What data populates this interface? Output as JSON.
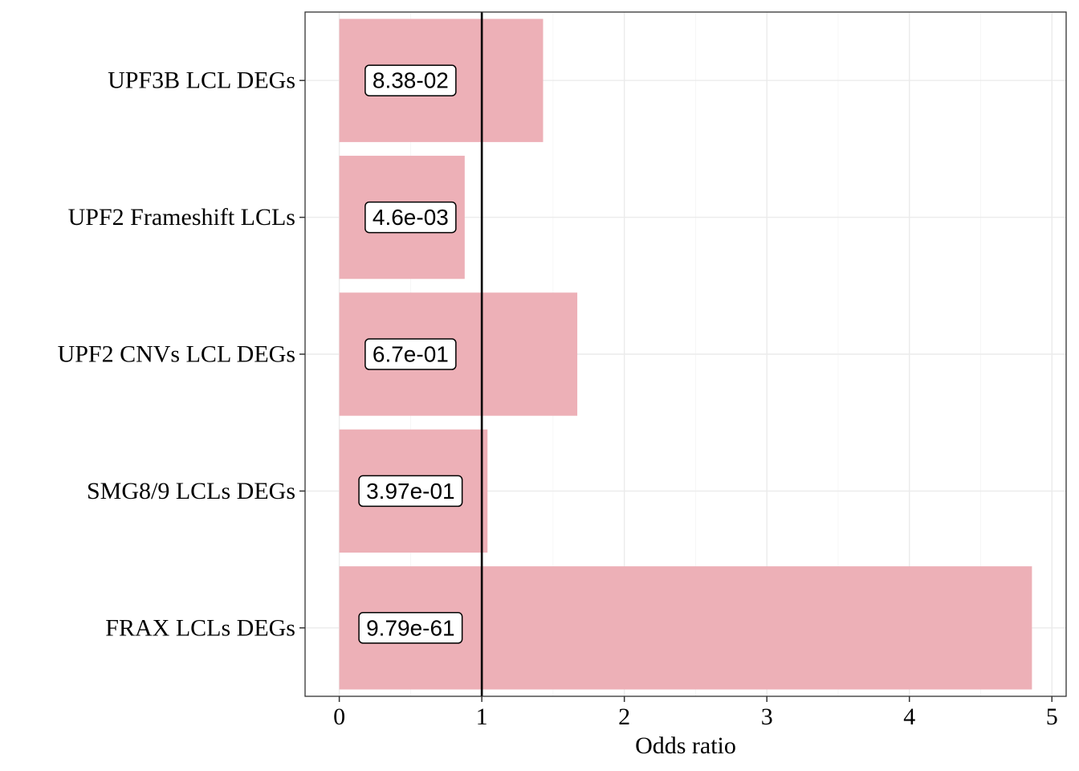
{
  "chart_data": {
    "type": "bar",
    "orientation": "horizontal",
    "categories": [
      "UPF3B LCL DEGs",
      "UPF2 Frameshift LCLs",
      "UPF2 CNVs LCL DEGs",
      "SMG8/9 LCLs DEGs",
      "FRAX LCLs DEGs"
    ],
    "values": [
      1.43,
      0.88,
      1.67,
      1.04,
      4.86
    ],
    "labels": [
      "8.38-02",
      "4.6e-03",
      "6.7e-01",
      "3.97e-01",
      "9.79e-61"
    ],
    "xlabel": "Odds ratio",
    "ylabel": "",
    "xlim": [
      -0.24,
      5.1
    ],
    "xticks": [
      0,
      1,
      2,
      3,
      4,
      5
    ],
    "xtick_labels": [
      "0",
      "1",
      "2",
      "3",
      "4",
      "5"
    ],
    "reference_line": 1,
    "bar_color": "#edb0b7",
    "grid": true,
    "legend": "none"
  }
}
